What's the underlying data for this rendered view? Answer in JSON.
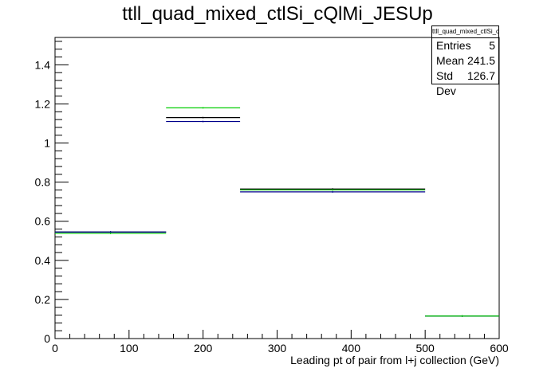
{
  "chart_data": {
    "type": "histogram",
    "title": "ttll_quad_mixed_ctlSi_cQlMi_JESUp",
    "xlabel": "Leading pt of pair from l+j collection (GeV)",
    "ylabel": "",
    "xlim": [
      0,
      600
    ],
    "ylim": [
      0,
      1.54
    ],
    "x_ticks": [
      0,
      100,
      200,
      300,
      400,
      500,
      600
    ],
    "y_ticks": [
      0,
      0.2,
      0.4,
      0.6,
      0.8,
      1,
      1.2,
      1.4
    ],
    "bin_edges": [
      0,
      150,
      250,
      500,
      600
    ],
    "series": [
      {
        "color": "#000000",
        "values": [
          0.545,
          1.13,
          0.765,
          0.115
        ]
      },
      {
        "color": "#00008b",
        "values": [
          0.545,
          1.11,
          0.75,
          0.115
        ]
      },
      {
        "color": "#00cc00",
        "values": [
          0.538,
          1.18,
          0.76,
          0.115
        ]
      }
    ],
    "grid": false,
    "stats": {
      "name": "ttll_quad_mixed_ctlSi_cQlMi_JESUp",
      "rows": [
        {
          "label": "Entries",
          "value": "5"
        },
        {
          "label": "Mean",
          "value": "241.5"
        },
        {
          "label": "Std Dev",
          "value": "126.7"
        }
      ]
    }
  }
}
